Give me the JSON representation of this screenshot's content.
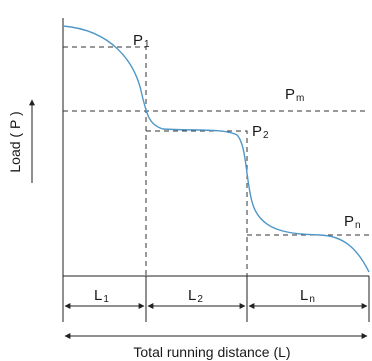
{
  "labels": {
    "p1": {
      "main": "P",
      "sub": "1"
    },
    "p2": {
      "main": "P",
      "sub": "2"
    },
    "pm": {
      "main": "P",
      "sub": "m"
    },
    "pn": {
      "main": "P",
      "sub": "n"
    },
    "l1": {
      "main": "L",
      "sub": "1"
    },
    "l2": {
      "main": "L",
      "sub": "2"
    },
    "ln": {
      "main": "L",
      "sub": "n"
    }
  },
  "y_axis_label": "Load ( P )",
  "x_axis_label": "Total running distance (L)",
  "colors": {
    "curve": "#4f97c8",
    "line": "#222222",
    "dash": "#333333"
  }
}
